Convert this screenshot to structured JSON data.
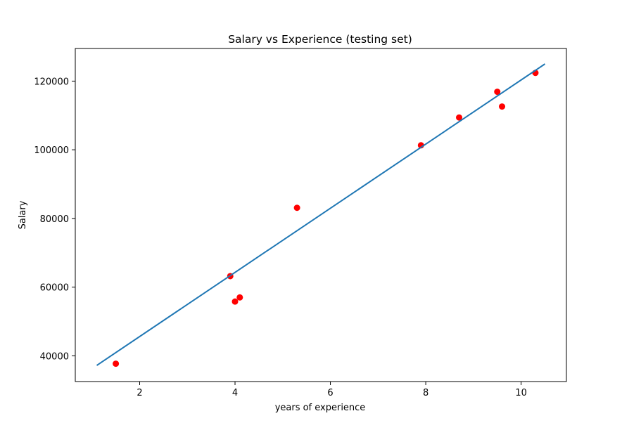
{
  "chart_data": {
    "type": "scatter",
    "title": "Salary vs Experience (testing set)",
    "xlabel": "years of experience",
    "ylabel": "Salary",
    "xlim": [
      0.65,
      10.95
    ],
    "ylim": [
      32500,
      129500
    ],
    "x_ticks": [
      2,
      4,
      6,
      8,
      10
    ],
    "y_ticks": [
      40000,
      60000,
      80000,
      100000,
      120000
    ],
    "grid": false,
    "series": [
      {
        "kind": "scatter",
        "color": "#ff0000",
        "x": [
          1.5,
          3.9,
          4.0,
          4.1,
          5.3,
          7.9,
          8.7,
          9.5,
          9.6,
          10.3
        ],
        "y": [
          37700,
          63200,
          55800,
          57000,
          83100,
          101300,
          109400,
          116900,
          112600,
          122400
        ]
      },
      {
        "kind": "line",
        "color": "#1f77b4",
        "x": [
          1.1,
          10.5
        ],
        "y": [
          37200,
          125000
        ]
      }
    ]
  }
}
